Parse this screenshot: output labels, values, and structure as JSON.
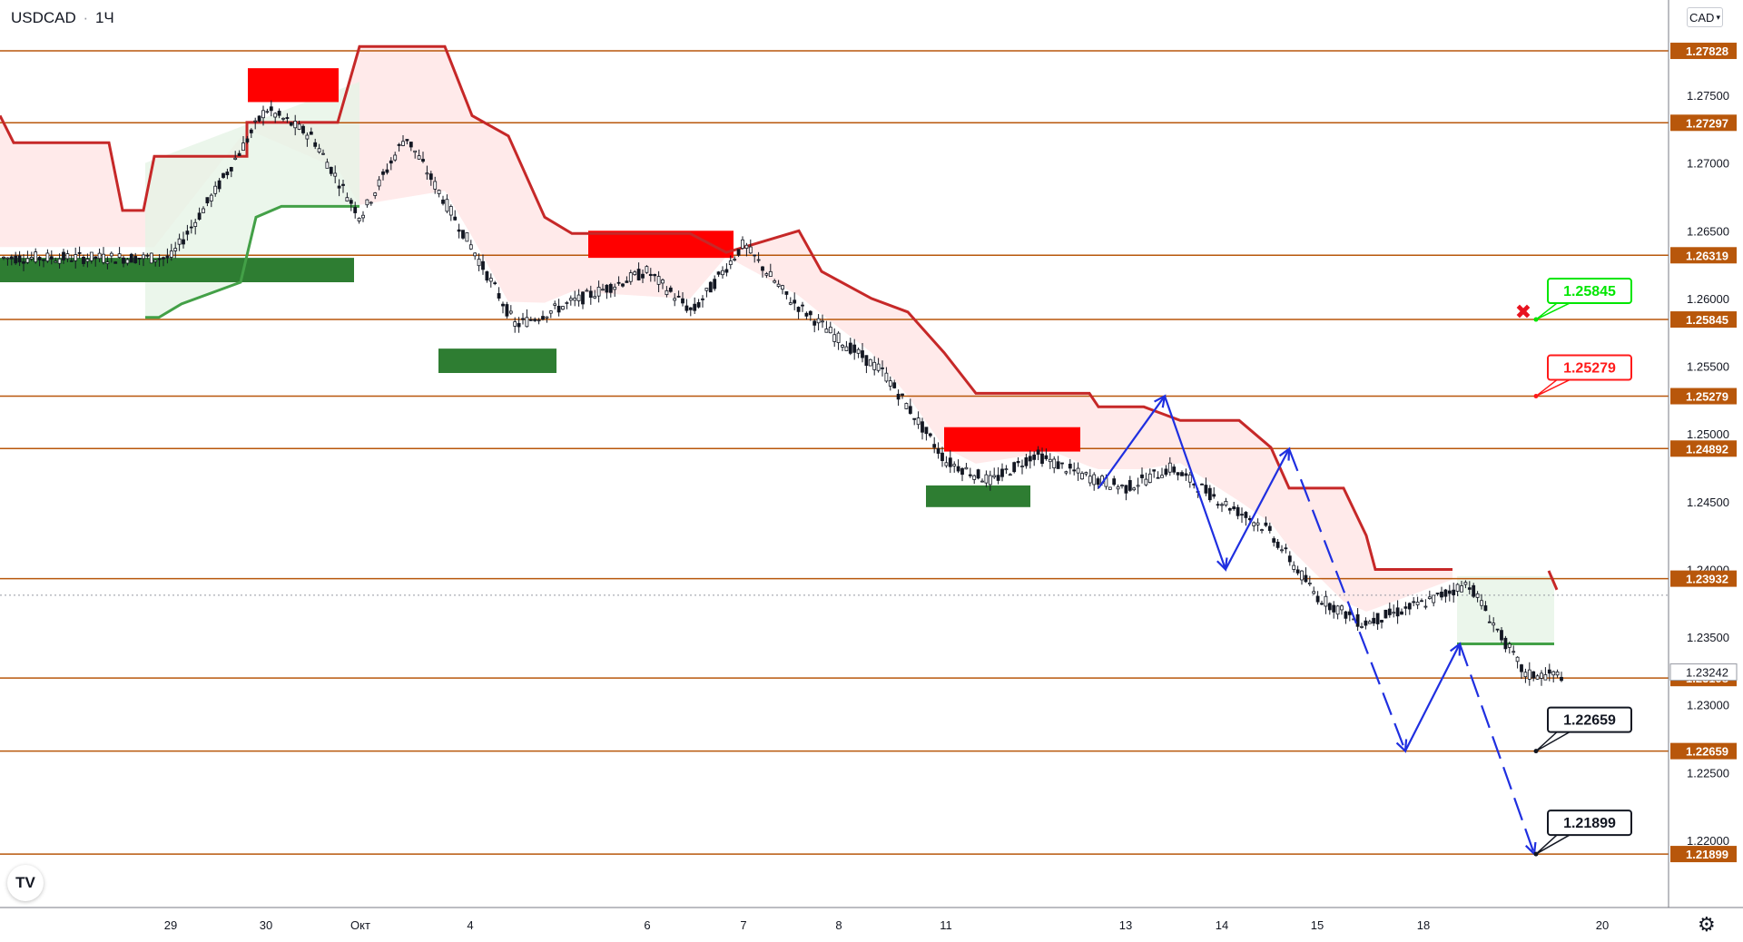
{
  "header": {
    "symbol": "USDCAD",
    "separator": "·",
    "interval": "1Ч"
  },
  "currency_button": {
    "label": "CAD",
    "icon": "chevron-down-icon"
  },
  "logo": {
    "text": "TV"
  },
  "settings": {
    "icon": "gear-icon"
  },
  "colors": {
    "level_line": "#b8570b",
    "resistance_zone": "#ff0000",
    "support_zone": "#2e7d32",
    "trail_stop": "#c62828",
    "trail_support": "#43a047",
    "forecast_arrow": "#1f2fe0",
    "bull_label": "#00e600",
    "bear_label": "#ff1a1a"
  },
  "chart_data": {
    "type": "line",
    "title": "USDCAD",
    "interval": "1Ч",
    "x_ticks": [
      "29",
      "30",
      "Окт",
      "4",
      "6",
      "7",
      "8",
      "11",
      "13",
      "14",
      "15",
      "18",
      "20"
    ],
    "y_ticks": [
      "1.27500",
      "1.27000",
      "1.26500",
      "1.26000",
      "1.25500",
      "1.25000",
      "1.24500",
      "1.24000",
      "1.23500",
      "1.23000",
      "1.22500",
      "1.22000"
    ],
    "ylim": [
      1.214,
      1.28
    ],
    "grid": false,
    "last_price": "1.23242",
    "levels": [
      "1.27828",
      "1.27297",
      "1.26319",
      "1.25845",
      "1.25279",
      "1.24892",
      "1.23932",
      "1.23198",
      "1.22659",
      "1.21899"
    ],
    "callouts": [
      {
        "text": "1.25845",
        "style": "bull",
        "marker": "x"
      },
      {
        "text": "1.25279",
        "style": "bear"
      },
      {
        "text": "1.22659",
        "style": "neutral"
      },
      {
        "text": "1.21899",
        "style": "neutral"
      }
    ],
    "price_series": {
      "name": "",
      "x": [
        "29",
        "29",
        "30",
        "30",
        "Окт",
        "Окт",
        "4",
        "4",
        "6",
        "6",
        "7",
        "7",
        "8",
        "8",
        "11",
        "11",
        "12",
        "12",
        "13",
        "13",
        "14",
        "14",
        "15",
        "15",
        "18",
        "18",
        "19"
      ],
      "y": [
        1.263,
        1.268,
        1.274,
        1.272,
        1.266,
        1.272,
        1.264,
        1.258,
        1.262,
        1.259,
        1.264,
        1.26,
        1.257,
        1.2545,
        1.248,
        1.2465,
        1.2485,
        1.247,
        1.246,
        1.2475,
        1.245,
        1.243,
        1.238,
        1.236,
        1.2375,
        1.239,
        1.2322
      ]
    },
    "zones": [
      {
        "kind": "resistance",
        "from": "30",
        "to": "30",
        "top": 1.277,
        "bottom": 1.2745
      },
      {
        "kind": "support",
        "from": "28",
        "to": "Окт",
        "top": 1.263,
        "bottom": 1.2612
      },
      {
        "kind": "resistance",
        "from": "6",
        "to": "7",
        "top": 1.265,
        "bottom": 1.263
      },
      {
        "kind": "support",
        "from": "4",
        "to": "6",
        "top": 1.2563,
        "bottom": 1.2545
      },
      {
        "kind": "resistance",
        "from": "11",
        "to": "12",
        "top": 1.2505,
        "bottom": 1.2487
      },
      {
        "kind": "support",
        "from": "11",
        "to": "12",
        "top": 1.2462,
        "bottom": 1.2446
      }
    ],
    "forecast_path": [
      1.246,
      1.2528,
      1.24,
      1.2489,
      1.2266,
      1.2345,
      1.219
    ]
  }
}
